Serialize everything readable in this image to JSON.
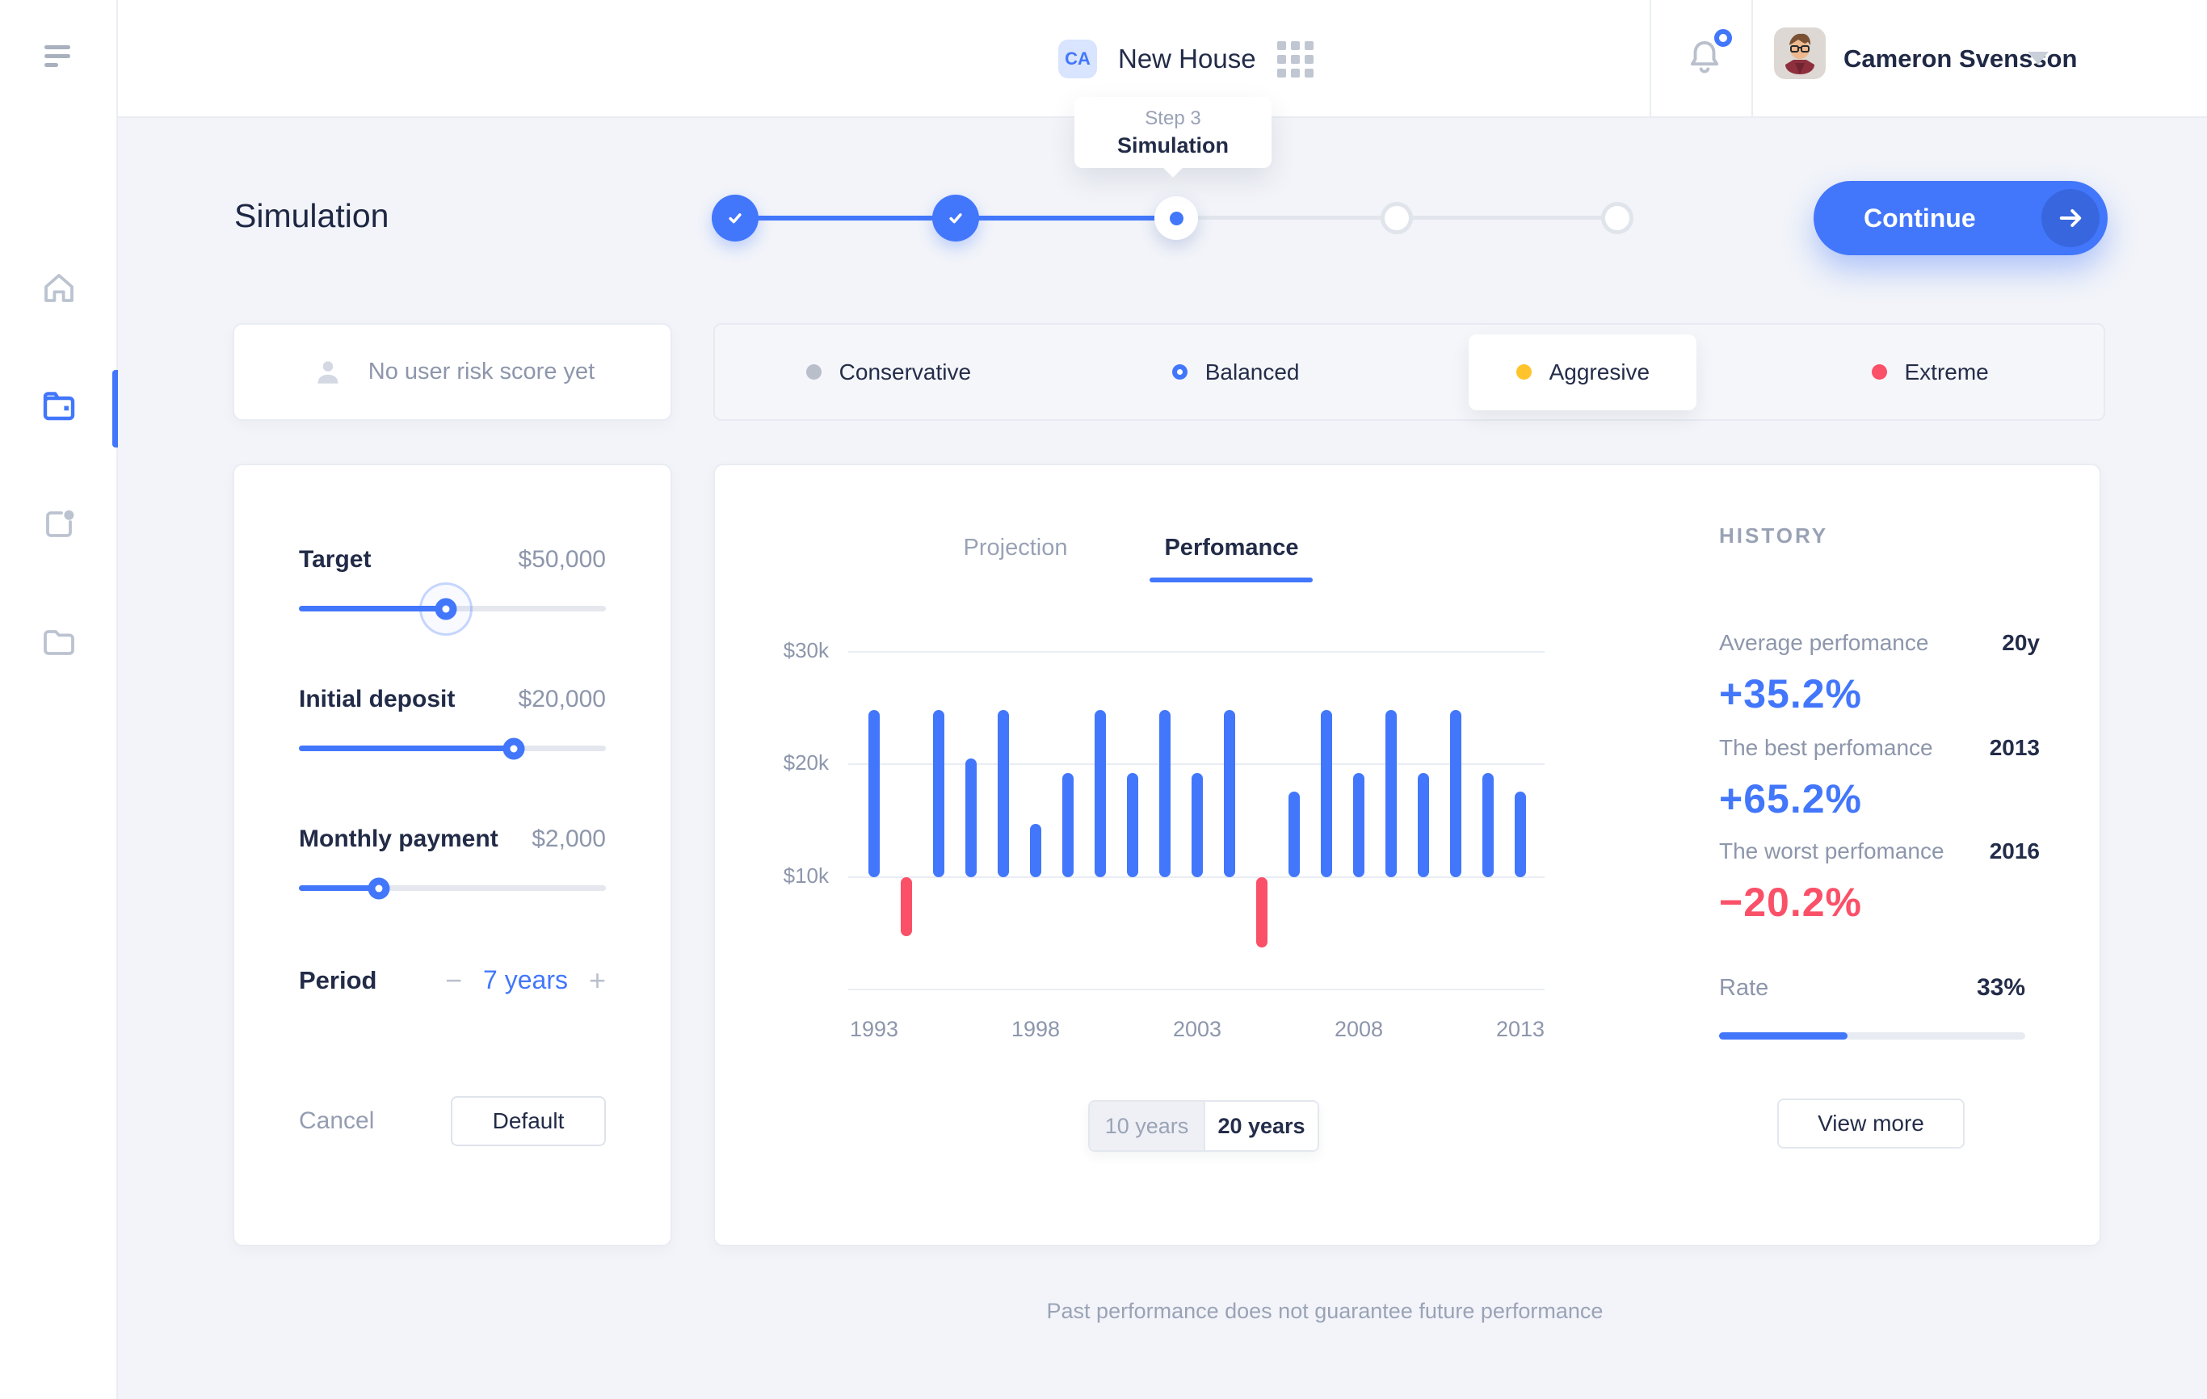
{
  "topbar": {
    "project_badge": "CA",
    "project_name": "New House",
    "user_name": "Cameron Svensson",
    "step_tooltip": {
      "step": "Step 3",
      "label": "Simulation"
    }
  },
  "page": {
    "title": "Simulation",
    "continue_label": "Continue",
    "footer_disclaimer": "Past performance does not guarantee future performance"
  },
  "stepper": {
    "steps": [
      "done",
      "done",
      "current",
      "upcoming",
      "upcoming"
    ]
  },
  "risk": {
    "no_score_label": "No user risk score yet",
    "options": [
      {
        "label": "Conservative",
        "color": "#b9bfca",
        "state": "default"
      },
      {
        "label": "Balanced",
        "color": "#4277fb",
        "state": "selected"
      },
      {
        "label": "Aggresive",
        "color": "#ffc32c",
        "state": "card"
      },
      {
        "label": "Extreme",
        "color": "#fa5068",
        "state": "default"
      }
    ]
  },
  "controls": {
    "sliders": [
      {
        "label": "Target",
        "value": "$50,000",
        "percent": 48,
        "halo": true
      },
      {
        "label": "Initial deposit",
        "value": "$20,000",
        "percent": 70,
        "halo": false
      },
      {
        "label": "Monthly payment",
        "value": "$2,000",
        "percent": 26,
        "halo": false
      }
    ],
    "period": {
      "label": "Period",
      "minus": "−",
      "value": "7 years",
      "plus": "+"
    },
    "cancel_label": "Cancel",
    "default_label": "Default"
  },
  "performance": {
    "tabs": [
      {
        "label": "Projection",
        "active": false
      },
      {
        "label": "Perfomance",
        "active": true
      }
    ],
    "range_options": [
      {
        "label": "10 years",
        "active": false
      },
      {
        "label": "20 years",
        "active": true
      }
    ]
  },
  "history": {
    "title": "HISTORY",
    "stats": [
      {
        "label": "Average perfomance",
        "meta": "20y",
        "value": "+35.2%",
        "color": "#4277fb"
      },
      {
        "label": "The best perfomance",
        "meta": "2013",
        "value": "+65.2%",
        "color": "#4277fb"
      },
      {
        "label": "The worst perfomance",
        "meta": "2016",
        "value": "−20.2%",
        "color": "#fa5068"
      }
    ],
    "rate": {
      "label": "Rate",
      "value": "33%",
      "bar_percent": 42
    },
    "view_more_label": "View more"
  },
  "chart_data": {
    "type": "bar",
    "title": "Perfomance",
    "x": [
      1993,
      1994,
      1995,
      1996,
      1997,
      1998,
      1999,
      2000,
      2001,
      2002,
      2003,
      2004,
      2005,
      2006,
      2007,
      2008,
      2009,
      2010,
      2011,
      2012,
      2013
    ],
    "values": [
      24.8,
      -5.2,
      24.8,
      20.5,
      24.8,
      14.7,
      19.2,
      24.8,
      19.2,
      24.8,
      19.2,
      24.8,
      -6.2,
      17.6,
      24.8,
      19.2,
      24.8,
      19.2,
      24.8,
      19.2,
      17.6
    ],
    "unit": "$k",
    "baseline": 10,
    "note": "bars rise from the $10k gridline; negative values hang below it",
    "ytick_labels": [
      "$30k",
      "$20k",
      "$10k"
    ],
    "ylim": [
      0,
      30
    ],
    "xtick_labels": [
      "1993",
      "1998",
      "2003",
      "2008",
      "2013"
    ],
    "xtick_slots": [
      0,
      5,
      10,
      15,
      20
    ],
    "grid": true,
    "bar_colors": {
      "positive": "#4277fb",
      "negative": "#fa5068"
    }
  },
  "colors": {
    "accent": "#4277fb",
    "negative": "#fa5068",
    "warning": "#ffc32c",
    "text_dark": "#222b47",
    "text_muted": "#8d96ab"
  }
}
